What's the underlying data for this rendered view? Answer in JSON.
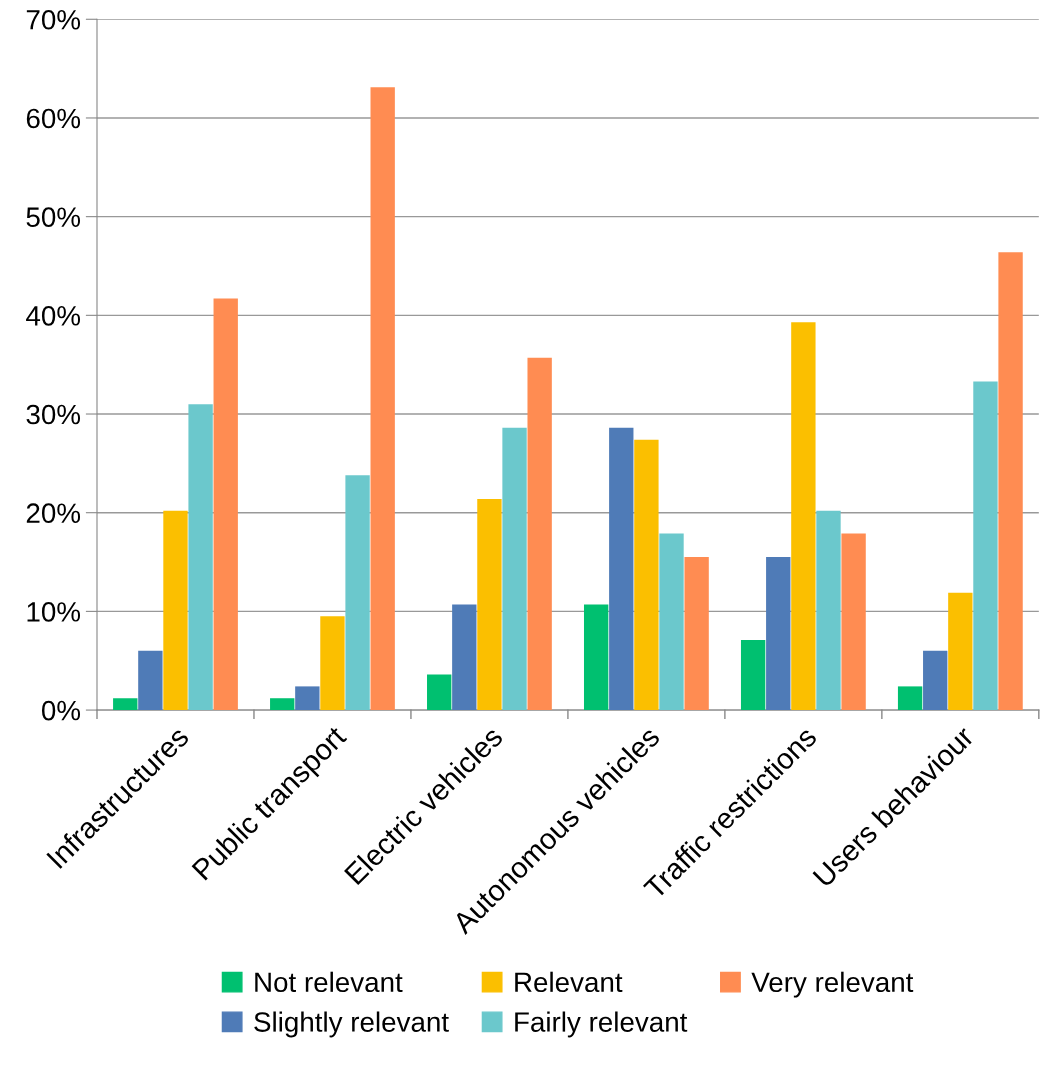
{
  "chart_data": {
    "type": "bar",
    "categories": [
      "Infrastructures",
      "Public transport",
      "Electric vehicles",
      "Autonomous vehicles",
      "Traffic restrictions",
      "Users behaviour"
    ],
    "series": [
      {
        "name": "Not relevant",
        "color": "#00c070",
        "values": [
          1.2,
          1.2,
          3.6,
          10.7,
          7.1,
          2.4
        ]
      },
      {
        "name": "Slightly relevant",
        "color": "#4f7bb7",
        "values": [
          6.0,
          2.4,
          10.7,
          28.6,
          15.5,
          6.0
        ]
      },
      {
        "name": "Relevant",
        "color": "#fbbf00",
        "values": [
          20.2,
          9.5,
          21.4,
          27.4,
          39.3,
          11.9
        ]
      },
      {
        "name": "Fairly relevant",
        "color": "#6bc8cc",
        "values": [
          31.0,
          23.8,
          28.6,
          17.9,
          20.2,
          33.3
        ]
      },
      {
        "name": "Very relevant",
        "color": "#ff8c52",
        "values": [
          41.7,
          63.1,
          35.7,
          15.5,
          17.9,
          46.4
        ]
      }
    ],
    "ylim": [
      0,
      70
    ],
    "yticks": [
      {
        "value": 0,
        "label": "0%"
      },
      {
        "value": 10,
        "label": "10%"
      },
      {
        "value": 20,
        "label": "20%"
      },
      {
        "value": 30,
        "label": "30%"
      },
      {
        "value": 40,
        "label": "40%"
      },
      {
        "value": 50,
        "label": "50%"
      },
      {
        "value": 60,
        "label": "60%"
      },
      {
        "value": 70,
        "label": "70%"
      }
    ],
    "grid": "y",
    "legend": "bottom"
  }
}
